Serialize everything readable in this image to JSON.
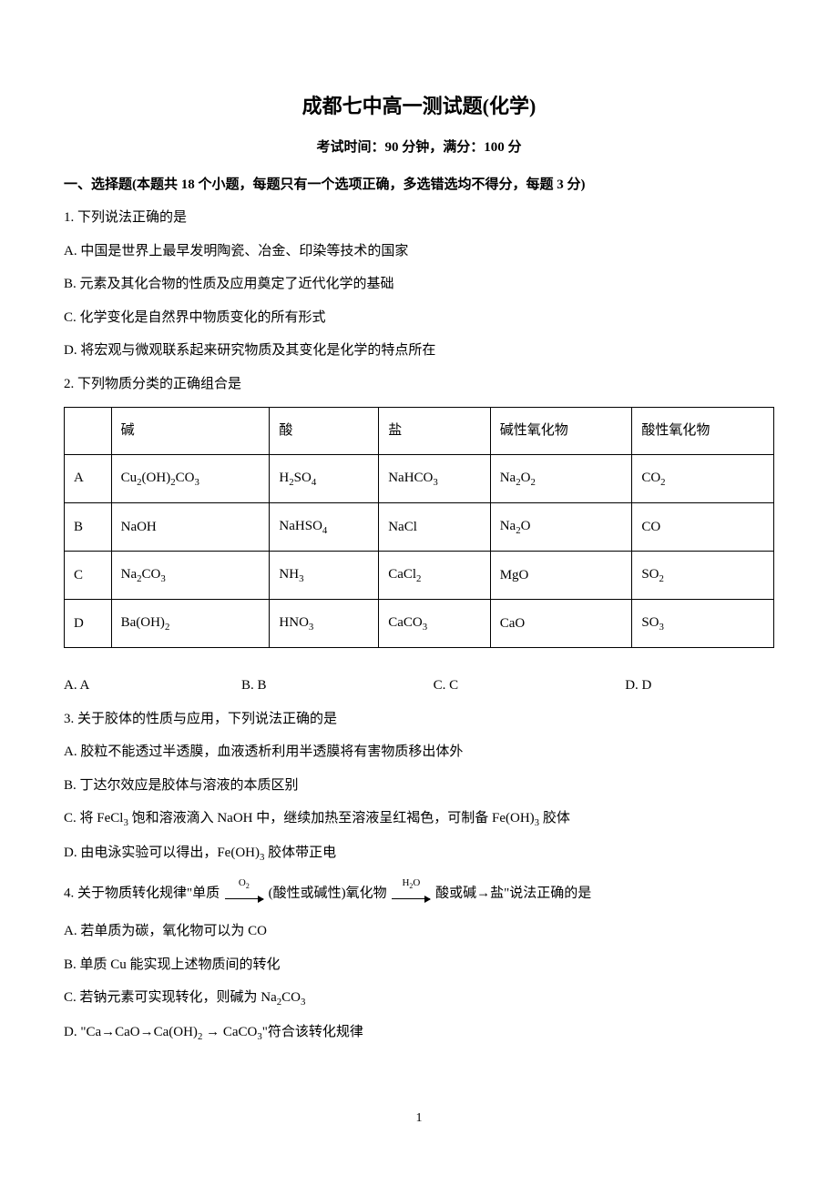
{
  "title": "成都七中高一测试题(化学)",
  "subtitle": "考试时间：90 分钟，满分：100 分",
  "section1_head": "一、选择题(本题共 18 个小题，每题只有一个选项正确，多选错选均不得分，每题 3 分)",
  "q1": {
    "stem": "1. 下列说法正确的是",
    "A": "A. 中国是世界上最早发明陶瓷、冶金、印染等技术的国家",
    "B": "B. 元素及其化合物的性质及应用奠定了近代化学的基础",
    "C": "C. 化学变化是自然界中物质变化的所有形式",
    "D": "D. 将宏观与微观联系起来研究物质及其变化是化学的特点所在"
  },
  "q2": {
    "stem": "2. 下列物质分类的正确组合是",
    "headers": [
      "",
      "碱",
      "酸",
      "盐",
      "碱性氧化物",
      "酸性氧化物"
    ],
    "rows": [
      [
        "A",
        "Cu₂(OH)₂CO₃",
        "H₂SO₄",
        "NaHCO₃",
        "Na₂O₂",
        "CO₂"
      ],
      [
        "B",
        "NaOH",
        "NaHSO₄",
        "NaCl",
        "Na₂O",
        "CO"
      ],
      [
        "C",
        "Na₂CO₃",
        "NH₃",
        "CaCl₂",
        "MgO",
        "SO₂"
      ],
      [
        "D",
        "Ba(OH)₂",
        "HNO₃",
        "CaCO₃",
        "CaO",
        "SO₃"
      ]
    ],
    "opts": [
      "A. A",
      "B. B",
      "C. C",
      "D. D"
    ]
  },
  "q3": {
    "stem": "3. 关于胶体的性质与应用，下列说法正确的是",
    "A": "A. 胶粒不能透过半透膜，血液透析利用半透膜将有害物质移出体外",
    "B": "B. 丁达尔效应是胶体与溶液的本质区别",
    "C_pre": "C. 将 FeCl",
    "C_mid1": " 饱和溶液滴入 NaOH 中，继续加热至溶液呈红褐色，可制备 Fe(OH)",
    "C_post": " 胶体",
    "D_pre": "D. 由电泳实验可以得出，Fe(OH)",
    "D_post": " 胶体带正电"
  },
  "q4": {
    "stem_pre": "4. 关于物质转化规律\"单质 ",
    "arrow1": "O₂",
    "stem_mid1": " (酸性或碱性)氧化物 ",
    "arrow2": "H₂O",
    "stem_mid2": " 酸或碱→盐\"说法正确的是",
    "A": "A. 若单质为碳，氧化物可以为 CO",
    "B": "B. 单质 Cu 能实现上述物质间的转化",
    "C_pre": "C. 若钠元素可实现转化，则碱为 Na",
    "C_post": "CO",
    "D_pre": "D. \"Ca→CaO→Ca(OH)",
    "D_mid": " → CaCO",
    "D_post": "\"符合该转化规律"
  },
  "pagenum": "1"
}
